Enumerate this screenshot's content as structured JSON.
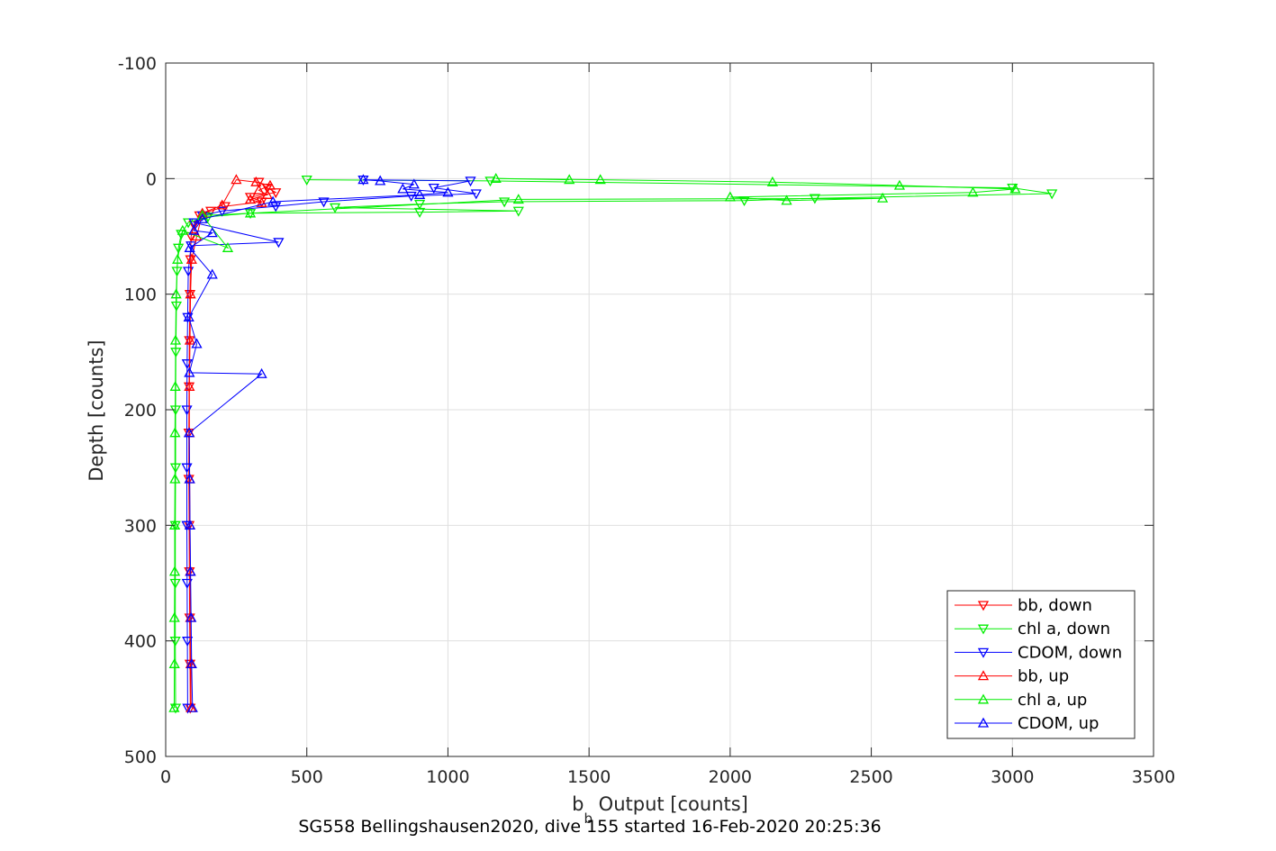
{
  "chart_data": {
    "type": "line",
    "xlabel_main": "b",
    "xlabel_sub": "b",
    "xlabel_rest": " Output [counts]",
    "ylabel": "Depth [counts]",
    "caption": "SG558 Bellingshausen2020, dive 155 started 16-Feb-2020 20:25:36",
    "xlim": [
      0,
      3500
    ],
    "ylim": [
      -100,
      500
    ],
    "y_reversed": true,
    "xticks": [
      0,
      500,
      1000,
      1500,
      2000,
      2500,
      3000,
      3500
    ],
    "yticks": [
      -100,
      0,
      100,
      200,
      300,
      400,
      500
    ],
    "xtick_labels": [
      "0",
      "500",
      "1000",
      "1500",
      "2000",
      "2500",
      "3000",
      "3500"
    ],
    "ytick_labels": [
      "-100",
      "0",
      "100",
      "200",
      "300",
      "400",
      "500"
    ],
    "grid": true,
    "legend_position": "bottom-right",
    "series": [
      {
        "name": "bb, down",
        "color": "#ff0000",
        "marker": "triangle-down",
        "points": [
          [
            330,
            3
          ],
          [
            360,
            8
          ],
          [
            390,
            12
          ],
          [
            300,
            16
          ],
          [
            340,
            20
          ],
          [
            210,
            24
          ],
          [
            160,
            28
          ],
          [
            120,
            32
          ],
          [
            100,
            40
          ],
          [
            90,
            50
          ],
          [
            88,
            70
          ],
          [
            86,
            100
          ],
          [
            84,
            140
          ],
          [
            83,
            180
          ],
          [
            82,
            220
          ],
          [
            82,
            260
          ],
          [
            83,
            300
          ],
          [
            84,
            340
          ],
          [
            85,
            380
          ],
          [
            86,
            420
          ],
          [
            87,
            458
          ]
        ]
      },
      {
        "name": "chl a, down",
        "color": "#00ee00",
        "marker": "triangle-down",
        "points": [
          [
            500,
            1
          ],
          [
            1150,
            2
          ],
          [
            3000,
            8
          ],
          [
            3140,
            13
          ],
          [
            2300,
            17
          ],
          [
            2050,
            19
          ],
          [
            1200,
            20
          ],
          [
            900,
            22
          ],
          [
            600,
            25
          ],
          [
            1250,
            28
          ],
          [
            900,
            29
          ],
          [
            300,
            30
          ],
          [
            150,
            33
          ],
          [
            80,
            38
          ],
          [
            55,
            48
          ],
          [
            45,
            60
          ],
          [
            40,
            80
          ],
          [
            38,
            110
          ],
          [
            36,
            150
          ],
          [
            35,
            200
          ],
          [
            35,
            250
          ],
          [
            34,
            300
          ],
          [
            34,
            350
          ],
          [
            34,
            400
          ],
          [
            35,
            458
          ]
        ]
      },
      {
        "name": "CDOM, down",
        "color": "#0000ff",
        "marker": "triangle-down",
        "points": [
          [
            700,
            1
          ],
          [
            1080,
            2
          ],
          [
            950,
            8
          ],
          [
            1100,
            13
          ],
          [
            870,
            15
          ],
          [
            560,
            20
          ],
          [
            390,
            24
          ],
          [
            200,
            28
          ],
          [
            130,
            32
          ],
          [
            100,
            38
          ],
          [
            400,
            55
          ],
          [
            90,
            58
          ],
          [
            80,
            80
          ],
          [
            78,
            120
          ],
          [
            76,
            160
          ],
          [
            75,
            200
          ],
          [
            75,
            250
          ],
          [
            75,
            300
          ],
          [
            76,
            350
          ],
          [
            77,
            400
          ],
          [
            78,
            458
          ]
        ]
      },
      {
        "name": "bb, up",
        "color": "#ff0000",
        "marker": "triangle-up",
        "points": [
          [
            90,
            458
          ],
          [
            89,
            420
          ],
          [
            88,
            380
          ],
          [
            87,
            340
          ],
          [
            86,
            300
          ],
          [
            85,
            260
          ],
          [
            84,
            220
          ],
          [
            84,
            180
          ],
          [
            86,
            140
          ],
          [
            88,
            100
          ],
          [
            92,
            70
          ],
          [
            110,
            50
          ],
          [
            130,
            30
          ],
          [
            200,
            23
          ],
          [
            250,
            1
          ],
          [
            320,
            3
          ],
          [
            370,
            6
          ],
          [
            330,
            10
          ],
          [
            360,
            14
          ],
          [
            300,
            18
          ],
          [
            340,
            21
          ]
        ]
      },
      {
        "name": "chl a, up",
        "color": "#00ee00",
        "marker": "triangle-up",
        "points": [
          [
            30,
            458
          ],
          [
            31,
            420
          ],
          [
            31,
            380
          ],
          [
            32,
            340
          ],
          [
            32,
            300
          ],
          [
            33,
            260
          ],
          [
            33,
            220
          ],
          [
            34,
            180
          ],
          [
            35,
            140
          ],
          [
            37,
            100
          ],
          [
            42,
            70
          ],
          [
            60,
            45
          ],
          [
            220,
            60
          ],
          [
            130,
            32
          ],
          [
            300,
            30
          ],
          [
            1250,
            18
          ],
          [
            2540,
            17
          ],
          [
            2200,
            19
          ],
          [
            2000,
            16
          ],
          [
            2860,
            12
          ],
          [
            3010,
            9
          ],
          [
            2600,
            6
          ],
          [
            2150,
            3
          ],
          [
            1540,
            1
          ],
          [
            1170,
            0
          ],
          [
            1430,
            1
          ]
        ]
      },
      {
        "name": "CDOM, up",
        "color": "#0000ff",
        "marker": "triangle-up",
        "points": [
          [
            95,
            458
          ],
          [
            92,
            420
          ],
          [
            90,
            380
          ],
          [
            88,
            340
          ],
          [
            86,
            300
          ],
          [
            85,
            260
          ],
          [
            83,
            220
          ],
          [
            340,
            169
          ],
          [
            84,
            168
          ],
          [
            110,
            143
          ],
          [
            82,
            120
          ],
          [
            165,
            83
          ],
          [
            85,
            60
          ],
          [
            165,
            47
          ],
          [
            100,
            45
          ],
          [
            130,
            35
          ],
          [
            380,
            20
          ],
          [
            900,
            14
          ],
          [
            1000,
            12
          ],
          [
            840,
            9
          ],
          [
            880,
            5
          ],
          [
            760,
            2
          ],
          [
            700,
            1
          ]
        ]
      }
    ]
  }
}
